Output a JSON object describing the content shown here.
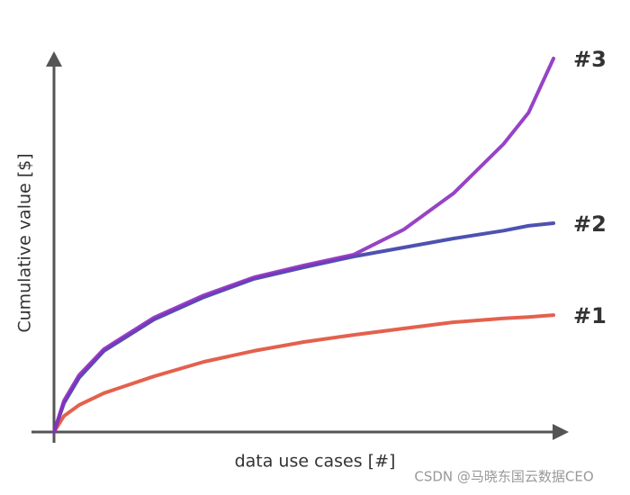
{
  "chart_data": {
    "type": "line",
    "xlabel": "data use cases [#]",
    "ylabel": "Cumulative value [$]",
    "x": [
      0,
      2,
      5,
      10,
      20,
      30,
      40,
      50,
      60,
      70,
      80,
      90,
      95,
      100
    ],
    "xlim": [
      0,
      100
    ],
    "ylim": [
      0,
      100
    ],
    "series": [
      {
        "name": "#1",
        "color": "#e0503a",
        "values": [
          0,
          4.3,
          7.2,
          10.4,
          14.9,
          18.8,
          21.7,
          24.1,
          26.0,
          27.7,
          29.4,
          30.4,
          30.8,
          31.3
        ]
      },
      {
        "name": "#2",
        "color": "#3a3fa8",
        "values": [
          0,
          7.7,
          14.5,
          21.7,
          30.1,
          36.1,
          41.0,
          44.1,
          47.0,
          49.4,
          51.8,
          53.9,
          55.2,
          55.9
        ]
      },
      {
        "name": "#3",
        "color": "#8b2fc0",
        "values": [
          0,
          8.4,
          15.2,
          22.2,
          30.6,
          36.6,
          41.4,
          44.6,
          47.5,
          54.2,
          63.9,
          77.1,
          85.5,
          100
        ]
      }
    ],
    "watermark": "CSDN @马晓东国云数据CEO"
  }
}
